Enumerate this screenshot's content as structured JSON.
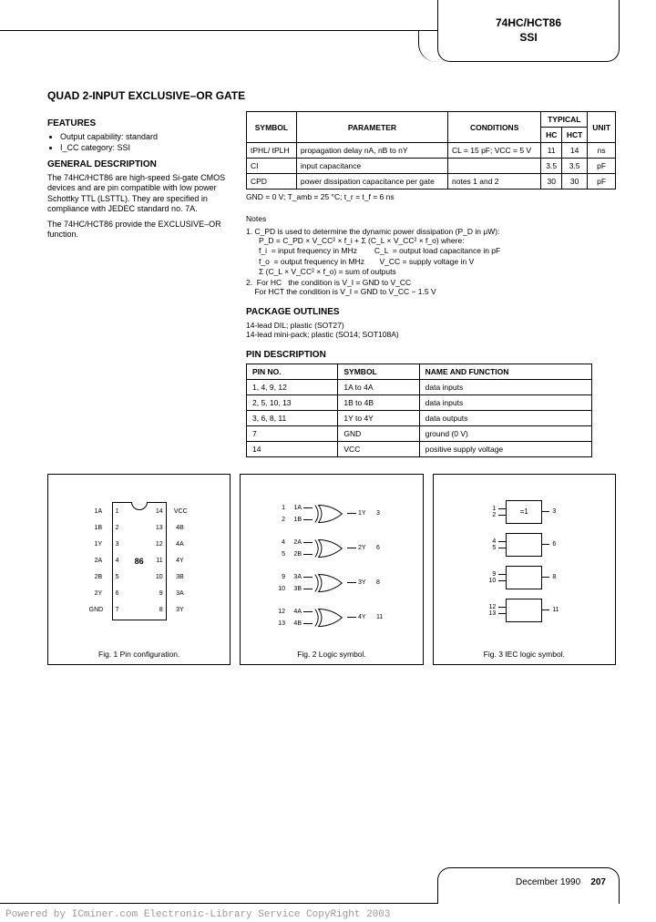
{
  "header": {
    "part": "74HC/HCT86",
    "class": "SSI"
  },
  "title": "QUAD 2-INPUT EXCLUSIVE–OR GATE",
  "features": {
    "heading": "FEATURES",
    "items": [
      "Output capability: standard",
      "I_CC category: SSI"
    ]
  },
  "general": {
    "heading": "GENERAL DESCRIPTION",
    "p1": "The 74HC/HCT86 are high-speed Si-gate CMOS devices and are pin compatible with low power Schottky TTL (LSTTL). They are specified in compliance with JEDEC standard no. 7A.",
    "p2": "The 74HC/HCT86 provide the EXCLUSIVE–OR function."
  },
  "spec_table": {
    "headers": {
      "symbol": "SYMBOL",
      "parameter": "PARAMETER",
      "conditions": "CONDITIONS",
      "typical": "TYPICAL",
      "hc": "HC",
      "hct": "HCT",
      "unit": "UNIT"
    },
    "rows": [
      {
        "symbol": "tPHL/ tPLH",
        "parameter": "propagation delay nA, nB to nY",
        "conditions": "CL = 15 pF; VCC = 5 V",
        "hc": "11",
        "hct": "14",
        "unit": "ns"
      },
      {
        "symbol": "CI",
        "parameter": "input capacitance",
        "conditions": "",
        "hc": "3.5",
        "hct": "3.5",
        "unit": "pF"
      },
      {
        "symbol": "CPD",
        "parameter": "power dissipation capacitance per gate",
        "conditions": "notes 1 and 2",
        "hc": "30",
        "hct": "30",
        "unit": "pF"
      }
    ],
    "gnd_line": "GND = 0 V; T_amb = 25 °C; t_r = t_f = 6 ns"
  },
  "notes": {
    "heading": "Notes",
    "n1_lead": "1.  C_PD is used to determine the dynamic power dissipation (P_D in µW):",
    "n1_eq": "P_D = C_PD × V_CC² × f_i + Σ (C_L × V_CC² × f_o) where:",
    "n1_defs": [
      "f_i  = input frequency in MHz        C_L  = output load capacitance in pF",
      "f_o  = output frequency in MHz       V_CC = supply voltage in V",
      "Σ (C_L × V_CC² × f_o) = sum of outputs"
    ],
    "n2a": "2.  For HC   the condition is V_I = GND to V_CC",
    "n2b": "    For HCT the condition is V_I = GND to V_CC − 1.5 V"
  },
  "package": {
    "heading": "PACKAGE OUTLINES",
    "lines": [
      "14-lead DIL; plastic (SOT27)",
      "14-lead mini-pack; plastic (SO14; SOT108A)"
    ]
  },
  "pin_desc": {
    "heading": "PIN DESCRIPTION",
    "headers": {
      "pin": "PIN NO.",
      "symbol": "SYMBOL",
      "name": "NAME AND FUNCTION"
    },
    "rows": [
      {
        "pin": "1, 4, 9, 12",
        "symbol": "1A to 4A",
        "name": "data inputs"
      },
      {
        "pin": "2, 5, 10, 13",
        "symbol": "1B to 4B",
        "name": "data inputs"
      },
      {
        "pin": "3, 6, 8, 11",
        "symbol": "1Y to 4Y",
        "name": "data outputs"
      },
      {
        "pin": "7",
        "symbol": "GND",
        "name": "ground (0 V)"
      },
      {
        "pin": "14",
        "symbol": "VCC",
        "name": "positive supply voltage"
      }
    ]
  },
  "figures": {
    "chip_label": "86",
    "fig1": "Fig. 1  Pin configuration.",
    "fig2": "Fig. 2  Logic symbol.",
    "fig3": "Fig. 3  IEC logic symbol.",
    "iec_label": "=1",
    "pins_left": [
      {
        "n": "1",
        "l": "1A"
      },
      {
        "n": "2",
        "l": "1B"
      },
      {
        "n": "3",
        "l": "1Y"
      },
      {
        "n": "4",
        "l": "2A"
      },
      {
        "n": "5",
        "l": "2B"
      },
      {
        "n": "6",
        "l": "2Y"
      },
      {
        "n": "7",
        "l": "GND"
      }
    ],
    "pins_right": [
      {
        "n": "14",
        "l": "VCC"
      },
      {
        "n": "13",
        "l": "4B"
      },
      {
        "n": "12",
        "l": "4A"
      },
      {
        "n": "11",
        "l": "4Y"
      },
      {
        "n": "10",
        "l": "3B"
      },
      {
        "n": "9",
        "l": "3A"
      },
      {
        "n": "8",
        "l": "3Y"
      }
    ],
    "gates": [
      {
        "a": "1",
        "al": "1A",
        "b": "2",
        "bl": "1B",
        "y": "3",
        "yl": "1Y"
      },
      {
        "a": "4",
        "al": "2A",
        "b": "5",
        "bl": "2B",
        "y": "6",
        "yl": "2Y"
      },
      {
        "a": "9",
        "al": "3A",
        "b": "10",
        "bl": "3B",
        "y": "8",
        "yl": "3Y"
      },
      {
        "a": "12",
        "al": "4A",
        "b": "13",
        "bl": "4B",
        "y": "11",
        "yl": "4Y"
      }
    ]
  },
  "footer": {
    "date": "December 1990",
    "page": "207"
  },
  "watermark": "Powered by ICminer.com Electronic-Library Service CopyRight 2003"
}
